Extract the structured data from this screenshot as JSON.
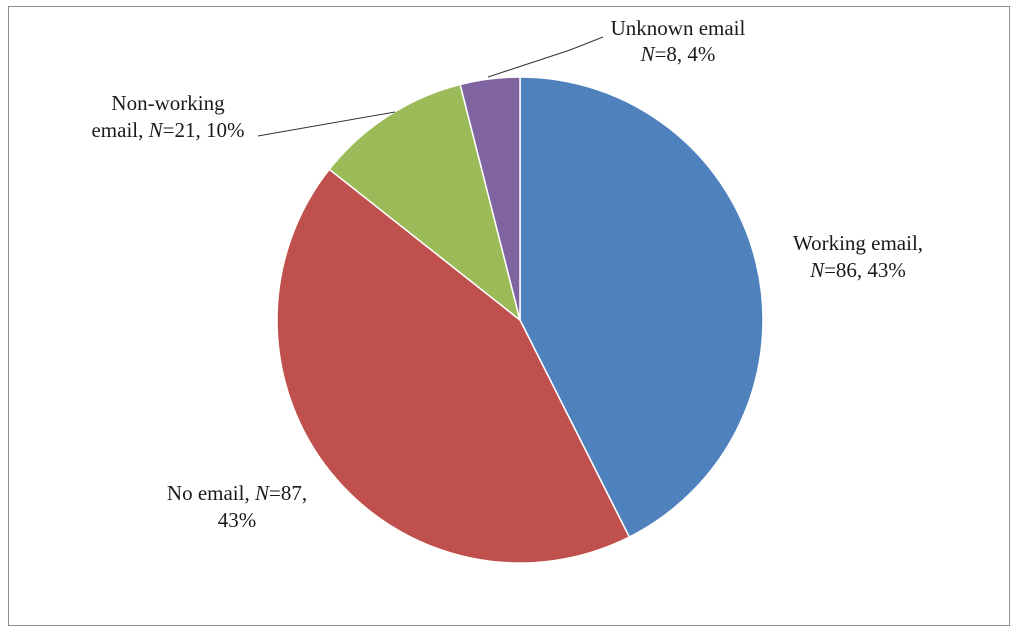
{
  "chart_data": {
    "type": "pie",
    "title": "",
    "slices": [
      {
        "name": "Working email",
        "n": 86,
        "percent": 43,
        "color": "#4f81bd",
        "label_lines": [
          [
            {
              "t": "Working email,"
            }
          ],
          [
            {
              "t": "N",
              "italic": true
            },
            {
              "t": "=86, 43%"
            }
          ]
        ]
      },
      {
        "name": "No email",
        "n": 87,
        "percent": 43,
        "color": "#c0504d",
        "label_lines": [
          [
            {
              "t": "No email, "
            },
            {
              "t": "N",
              "italic": true
            },
            {
              "t": "=87,"
            }
          ],
          [
            {
              "t": "43%"
            }
          ]
        ]
      },
      {
        "name": "Non-working email",
        "n": 21,
        "percent": 10,
        "color": "#9bbb59",
        "label_lines": [
          [
            {
              "t": "Non-working"
            }
          ],
          [
            {
              "t": "email, "
            },
            {
              "t": "N",
              "italic": true
            },
            {
              "t": "=21, 10%"
            }
          ]
        ]
      },
      {
        "name": "Unknown email",
        "n": 8,
        "percent": 4,
        "color": "#8064a2",
        "label_lines": [
          [
            {
              "t": "Unknown email"
            }
          ],
          [
            {
              "t": "N",
              "italic": true
            },
            {
              "t": "=8, 4%"
            }
          ]
        ]
      }
    ]
  }
}
